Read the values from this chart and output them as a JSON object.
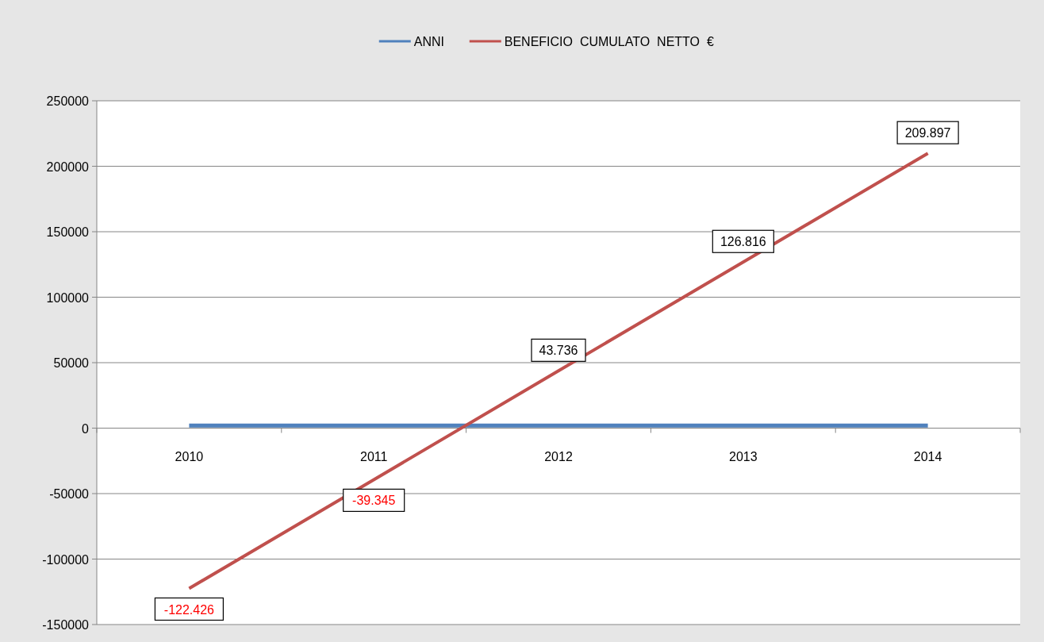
{
  "chart_data": {
    "type": "line",
    "categories": [
      "2010",
      "2011",
      "2012",
      "2013",
      "2014"
    ],
    "series": [
      {
        "name": "ANNI",
        "color": "#4f81bd",
        "values": [
          2010,
          2011,
          2012,
          2013,
          2014
        ]
      },
      {
        "name": "BENEFICIO  CUMULATO  NETTO  €",
        "color": "#c0504d",
        "values": [
          -122426,
          -39345,
          43736,
          126816,
          209897
        ],
        "value_labels": [
          "-122.426",
          "-39.345",
          "43.736",
          "126.816",
          "209.897"
        ]
      }
    ],
    "ylim": [
      -150000,
      250000
    ],
    "yticks": [
      -150000,
      -100000,
      -50000,
      0,
      50000,
      100000,
      150000,
      200000,
      250000
    ],
    "grid": "y",
    "legend": "top",
    "marker": "none"
  }
}
